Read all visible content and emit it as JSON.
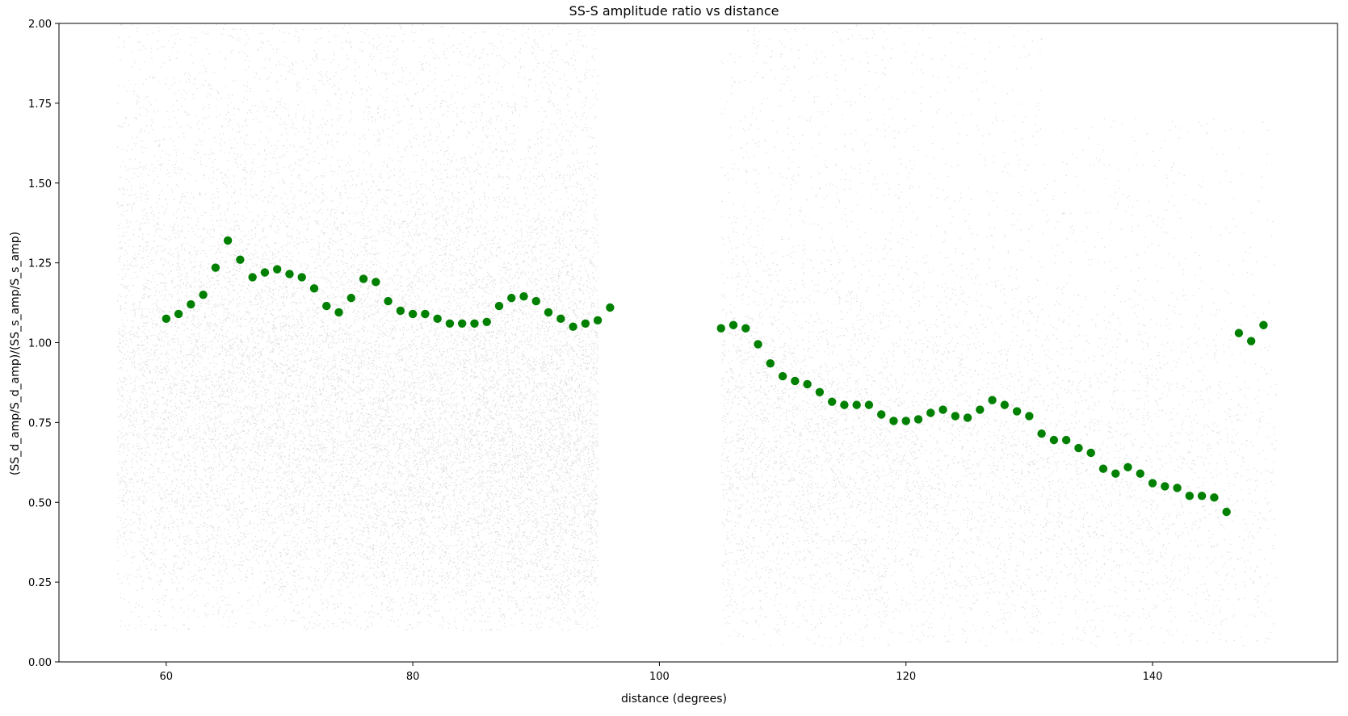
{
  "chart_data": {
    "type": "scatter",
    "title": "SS-S amplitude ratio vs distance",
    "xlabel": "distance (degrees)",
    "ylabel": "(SS_d_amp/S_d_amp)/(SS_s_amp/S_s_amp)",
    "xlim": [
      51.3,
      155
    ],
    "ylim": [
      0,
      2.0
    ],
    "x_ticks": [
      60,
      80,
      100,
      120,
      140
    ],
    "y_ticks": [
      "0.00",
      "0.25",
      "0.50",
      "0.75",
      "1.00",
      "1.25",
      "1.50",
      "1.75",
      "2.00"
    ],
    "grid": false,
    "legend": "none",
    "background_points": {
      "description_of_density": "dense gray point cloud",
      "color": "#000000",
      "alpha": 0.12,
      "segments": [
        {
          "x_range": [
            56,
            95
          ],
          "typical_y_range": [
            0.25,
            2.0
          ]
        },
        {
          "x_range": [
            105,
            150
          ],
          "typical_y_range": [
            0.05,
            2.0
          ]
        }
      ]
    },
    "series": [
      {
        "color": "#008000",
        "points": [
          [
            60,
            1.075
          ],
          [
            61,
            1.09
          ],
          [
            62,
            1.12
          ],
          [
            63,
            1.15
          ],
          [
            64,
            1.235
          ],
          [
            65,
            1.32
          ],
          [
            66,
            1.26
          ],
          [
            67,
            1.205
          ],
          [
            68,
            1.22
          ],
          [
            69,
            1.23
          ],
          [
            70,
            1.215
          ],
          [
            71,
            1.205
          ],
          [
            72,
            1.17
          ],
          [
            73,
            1.115
          ],
          [
            74,
            1.095
          ],
          [
            75,
            1.14
          ],
          [
            76,
            1.2
          ],
          [
            77,
            1.19
          ],
          [
            78,
            1.13
          ],
          [
            79,
            1.1
          ],
          [
            80,
            1.09
          ],
          [
            81,
            1.09
          ],
          [
            82,
            1.075
          ],
          [
            83,
            1.06
          ],
          [
            84,
            1.06
          ],
          [
            85,
            1.06
          ],
          [
            86,
            1.065
          ],
          [
            87,
            1.115
          ],
          [
            88,
            1.14
          ],
          [
            89,
            1.145
          ],
          [
            90,
            1.13
          ],
          [
            91,
            1.095
          ],
          [
            92,
            1.075
          ],
          [
            93,
            1.05
          ],
          [
            94,
            1.06
          ],
          [
            95,
            1.07
          ],
          [
            96,
            1.11
          ],
          [
            105,
            1.045
          ],
          [
            106,
            1.055
          ],
          [
            107,
            1.045
          ],
          [
            108,
            0.995
          ],
          [
            109,
            0.935
          ],
          [
            110,
            0.895
          ],
          [
            111,
            0.88
          ],
          [
            112,
            0.87
          ],
          [
            113,
            0.845
          ],
          [
            114,
            0.815
          ],
          [
            115,
            0.805
          ],
          [
            116,
            0.805
          ],
          [
            117,
            0.805
          ],
          [
            118,
            0.775
          ],
          [
            119,
            0.755
          ],
          [
            120,
            0.755
          ],
          [
            121,
            0.76
          ],
          [
            122,
            0.78
          ],
          [
            123,
            0.79
          ],
          [
            124,
            0.77
          ],
          [
            125,
            0.765
          ],
          [
            126,
            0.79
          ],
          [
            127,
            0.82
          ],
          [
            128,
            0.805
          ],
          [
            129,
            0.785
          ],
          [
            130,
            0.77
          ],
          [
            131,
            0.715
          ],
          [
            132,
            0.695
          ],
          [
            133,
            0.695
          ],
          [
            134,
            0.67
          ],
          [
            135,
            0.655
          ],
          [
            136,
            0.605
          ],
          [
            137,
            0.59
          ],
          [
            138,
            0.61
          ],
          [
            139,
            0.59
          ],
          [
            140,
            0.56
          ],
          [
            141,
            0.55
          ],
          [
            142,
            0.545
          ],
          [
            143,
            0.52
          ],
          [
            144,
            0.52
          ],
          [
            145,
            0.515
          ],
          [
            146,
            0.47
          ],
          [
            147,
            1.03
          ],
          [
            148,
            1.005
          ],
          [
            149,
            1.055
          ]
        ]
      }
    ]
  }
}
